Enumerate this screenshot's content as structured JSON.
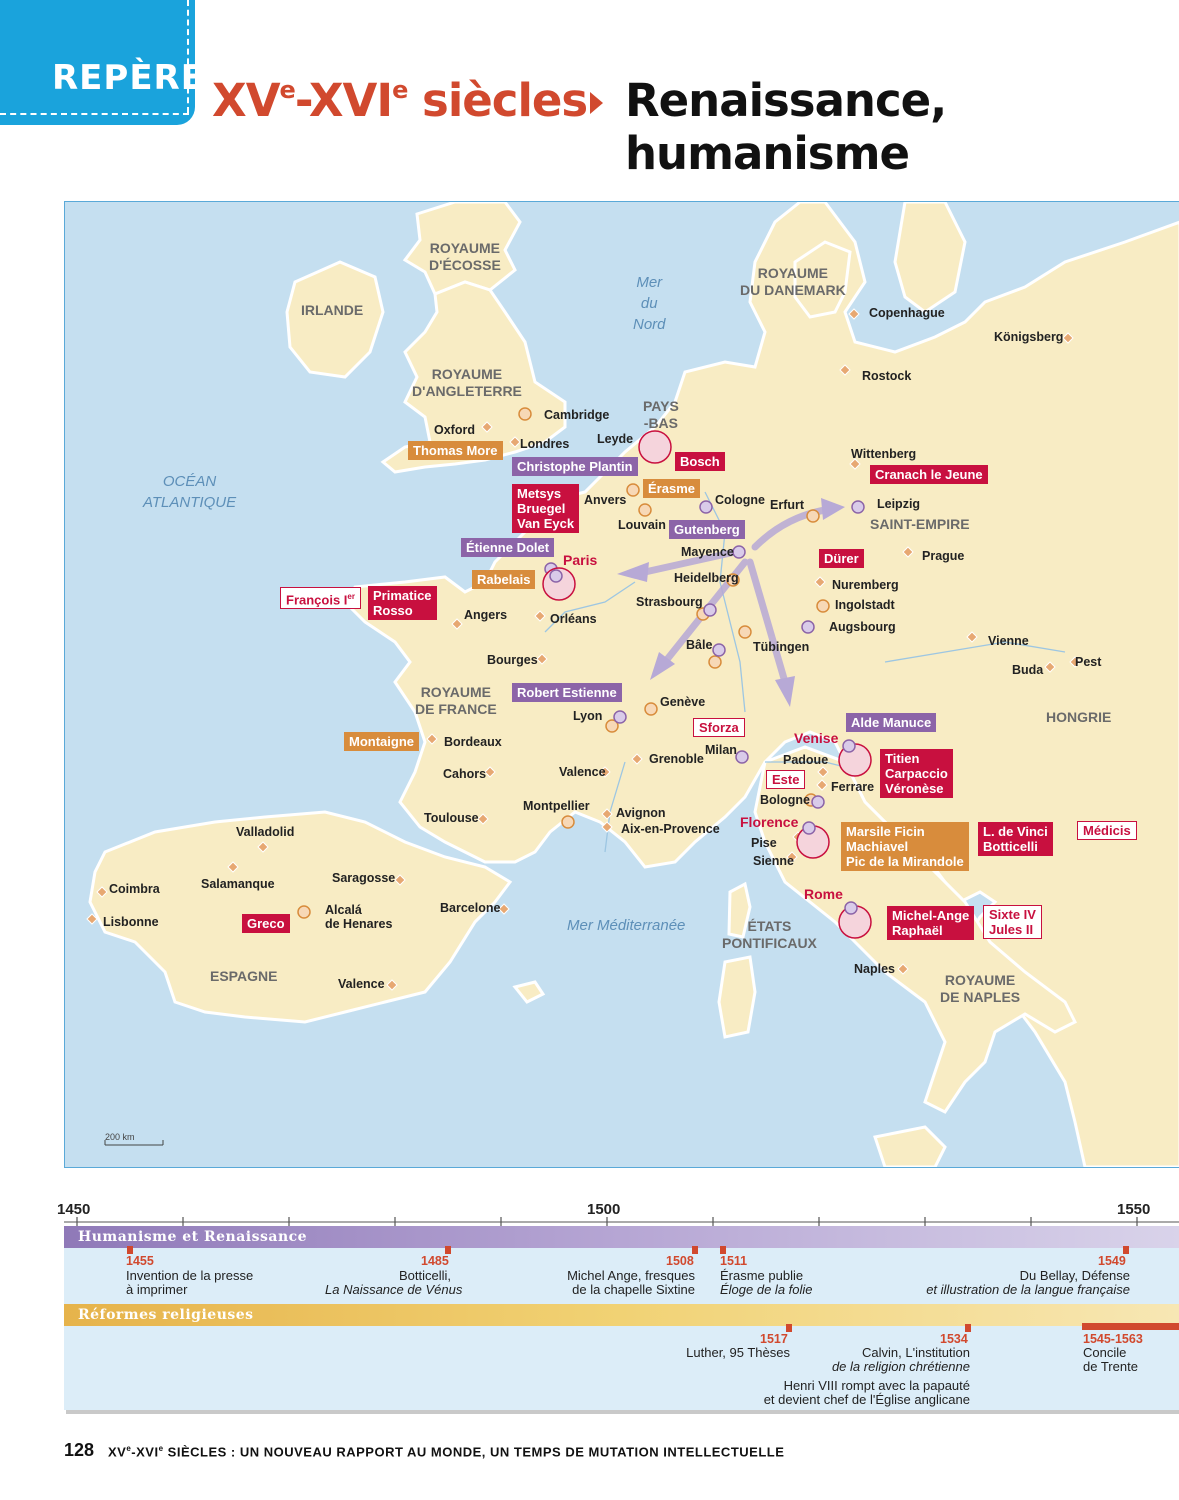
{
  "header": {
    "badge": "REPÈRES",
    "title_part1": "XV",
    "title_sup1": "e",
    "title_part2": "-XVI",
    "title_sup2": "e",
    "title_part3": " siècles",
    "title_right": "Renaissance, humanisme"
  },
  "map": {
    "regions": {
      "ecosse": [
        "ROYAUME",
        "D'ÉCOSSE"
      ],
      "irlande": "IRLANDE",
      "angleterre": [
        "ROYAUME",
        "D'ANGLETERRE"
      ],
      "danemark": [
        "ROYAUME",
        "DU DANEMARK"
      ],
      "paysbas": [
        "PAYS",
        "-BAS"
      ],
      "saint_empire": "SAINT-EMPIRE",
      "france": [
        "ROYAUME",
        "DE FRANCE"
      ],
      "hongrie": "HONGRIE",
      "espagne": "ESPAGNE",
      "etats_pontificaux": [
        "ÉTATS",
        "PONTIFICAUX"
      ],
      "naples_royaume": [
        "ROYAUME",
        "DE NAPLES"
      ]
    },
    "seas": {
      "mer_du_nord": [
        "Mer",
        "du",
        "Nord"
      ],
      "atlantique": [
        "OCÉAN",
        "ATLANTIQUE"
      ],
      "mediterranee": "Mer Méditerranée"
    },
    "cities": {
      "cambridge": "Cambridge",
      "oxford": "Oxford",
      "londres": "Londres",
      "leyde": "Leyde",
      "anvers": "Anvers",
      "louvain": "Louvain",
      "cologne": "Cologne",
      "erfurt": "Erfurt",
      "leipzig": "Leipzig",
      "wittenberg": "Wittenberg",
      "copenhague": "Copenhague",
      "rostock": "Rostock",
      "konigsberg": "Königsberg",
      "prague": "Prague",
      "mayence": "Mayence",
      "heidelberg": "Heidelberg",
      "nuremberg": "Nuremberg",
      "ingolstadt": "Ingolstadt",
      "augsbourg": "Augsbourg",
      "strasbourg": "Strasbourg",
      "tubingen": "Tübingen",
      "bale": "Bâle",
      "vienne": "Vienne",
      "buda": "Buda",
      "pest": "Pest",
      "paris": "Paris",
      "angers": "Angers",
      "orleans": "Orléans",
      "bourges": "Bourges",
      "geneve": "Genève",
      "lyon": "Lyon",
      "bordeaux": "Bordeaux",
      "cahors": "Cahors",
      "valence_fr": "Valence",
      "grenoble": "Grenoble",
      "milan": "Milan",
      "venise": "Venise",
      "padoue": "Padoue",
      "ferrare": "Ferrare",
      "bologne": "Bologne",
      "florence": "Florence",
      "pise": "Pise",
      "sienne": "Sienne",
      "rome": "Rome",
      "naples": "Naples",
      "toulouse": "Toulouse",
      "montpellier": "Montpellier",
      "avignon": "Avignon",
      "aix": "Aix-en-Provence",
      "valladolid": "Valladolid",
      "salamanque": "Salamanque",
      "saragosse": "Saragosse",
      "coimbra": "Coimbra",
      "lisbonne": "Lisbonne",
      "alcala": [
        "Alcalá",
        "de Henares"
      ],
      "barcelone": "Barcelone",
      "valence_es": "Valence"
    },
    "people": {
      "thomas_more": "Thomas More",
      "christophe_plantin": "Christophe Plantin",
      "bosch": "Bosch",
      "erasme": "Érasme",
      "metsys": [
        "Metsys",
        "Bruegel",
        "Van Eyck"
      ],
      "gutenberg": "Gutenberg",
      "cranach": "Cranach le Jeune",
      "etienne_dolet": "Étienne Dolet",
      "rabelais": "Rabelais",
      "francois": "François I",
      "francois_sup": "er",
      "primatice": [
        "Primatice",
        "Rosso"
      ],
      "durer": "Dürer",
      "robert_estienne": "Robert Estienne",
      "montaigne": "Montaigne",
      "sforza": "Sforza",
      "alde_manuce": "Alde Manuce",
      "titien": [
        "Titien",
        "Carpaccio",
        "Véronèse"
      ],
      "este": "Este",
      "marsile": [
        "Marsile Ficin",
        "Machiavel",
        "Pic de la Mirandole"
      ],
      "vinci": [
        "L. de Vinci",
        "Botticelli"
      ],
      "medicis": "Médicis",
      "michel_ange": [
        "Michel-Ange",
        "Raphaël"
      ],
      "sixte": [
        "Sixte IV",
        "Jules II"
      ],
      "greco": "Greco"
    },
    "scale_label": "200 km"
  },
  "timeline": {
    "years": [
      "1450",
      "1500",
      "1550"
    ],
    "humanisme": {
      "title": "Humanisme et Renaissance",
      "events": [
        {
          "year": "1455",
          "text": [
            "Invention de la presse",
            "à imprimer"
          ]
        },
        {
          "year": "1485",
          "text": [
            "Botticelli,",
            "La Naissance de Vénus"
          ]
        },
        {
          "year": "1508",
          "text": [
            "Michel Ange, fresques",
            "de la chapelle Sixtine"
          ]
        },
        {
          "year": "1511",
          "text": [
            "Érasme publie",
            "Éloge de la folie"
          ]
        },
        {
          "year": "1549",
          "text": [
            "Du Bellay, Défense",
            "et illustration de la langue française"
          ]
        }
      ]
    },
    "reformes": {
      "title": "Réformes religieuses",
      "events": [
        {
          "year": "1517",
          "text": [
            "Luther, 95 Thèses"
          ]
        },
        {
          "year": "1534",
          "text": [
            "Calvin, L'institution",
            "de la religion chrétienne"
          ]
        },
        {
          "year": "1534b",
          "text": [
            "Henri VIII rompt avec la papauté",
            "et devient chef de l'Église anglicane"
          ]
        },
        {
          "year": "1545-1563",
          "text": [
            "Concile",
            "de Trente"
          ]
        }
      ]
    }
  },
  "footer": {
    "page_number": "128",
    "text_a": "XV",
    "text_sup1": "e",
    "text_b": "-XVI",
    "text_sup2": "e",
    "text_c": " SIÈCLES : UN NOUVEAU RAPPORT AU MONDE, UN TEMPS DE MUTATION INTELLECTUELLE"
  },
  "colors": {
    "sea": "#c5dff0",
    "land": "#f8ecc4",
    "accent_red": "#d1492e",
    "magenta": "#c8103f",
    "purple": "#8c64a8",
    "orange": "#d88c3c"
  }
}
